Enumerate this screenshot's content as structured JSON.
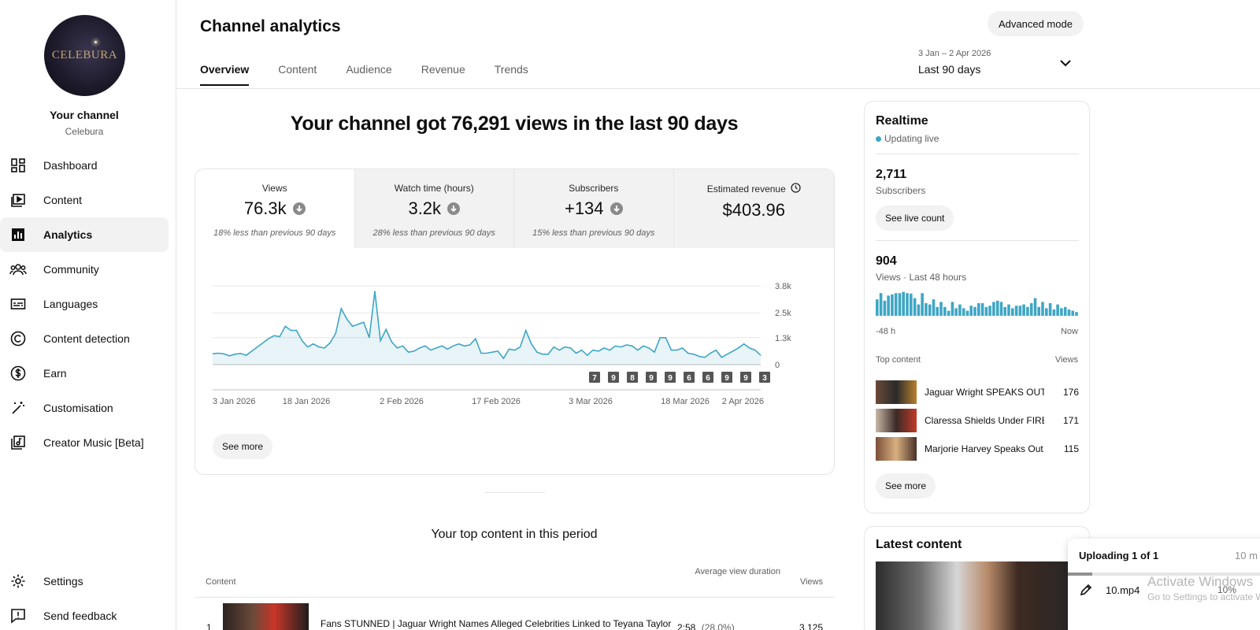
{
  "sidebar": {
    "avatar_text": "CELEBURA",
    "your_channel": "Your channel",
    "channel_name": "Celebura",
    "items": [
      {
        "label": "Dashboard",
        "icon": "dashboard-icon"
      },
      {
        "label": "Content",
        "icon": "content-icon"
      },
      {
        "label": "Analytics",
        "icon": "analytics-icon",
        "active": true
      },
      {
        "label": "Community",
        "icon": "community-icon"
      },
      {
        "label": "Languages",
        "icon": "subtitles-icon"
      },
      {
        "label": "Content detection",
        "icon": "copyright-icon"
      },
      {
        "label": "Earn",
        "icon": "dollar-icon"
      },
      {
        "label": "Customisation",
        "icon": "magic-wand-icon"
      },
      {
        "label": "Creator Music [Beta]",
        "icon": "music-icon"
      }
    ],
    "bottom": [
      {
        "label": "Settings",
        "icon": "gear-icon"
      },
      {
        "label": "Send feedback",
        "icon": "feedback-icon"
      }
    ]
  },
  "header": {
    "title": "Channel analytics",
    "advanced_mode": "Advanced mode",
    "tabs": [
      "Overview",
      "Content",
      "Audience",
      "Revenue",
      "Trends"
    ],
    "active_tab": "Overview",
    "date_range": {
      "sub": "3 Jan – 2 Apr 2026",
      "main": "Last 90 days"
    }
  },
  "overview": {
    "headline": "Your channel got 76,291 views in the last 90 days",
    "metrics": [
      {
        "label": "Views",
        "value": "76.3k",
        "note": "18% less than previous 90 days",
        "trend": "down"
      },
      {
        "label": "Watch time (hours)",
        "value": "3.2k",
        "note": "28% less than previous 90 days",
        "trend": "down"
      },
      {
        "label": "Subscribers",
        "value": "+134",
        "note": "15% less than previous 90 days",
        "trend": "down"
      },
      {
        "label": "Estimated revenue",
        "value": "$403.96",
        "note": "",
        "trend": "none"
      }
    ],
    "see_more": "See more"
  },
  "chart_data": {
    "type": "area",
    "title": "",
    "xlabel": "",
    "ylabel": "",
    "x_tick_labels": [
      "3 Jan 2026",
      "18 Jan 2026",
      "2 Feb 2026",
      "17 Feb 2026",
      "3 Mar 2026",
      "18 Mar 2026",
      "2 Apr 2026"
    ],
    "y_tick_labels": [
      "3.8k",
      "2.5k",
      "1.3k",
      "0"
    ],
    "y_ticks": [
      3800,
      2500,
      1300,
      0
    ],
    "ylim": [
      0,
      3800
    ],
    "grid": true,
    "series": [
      {
        "values": [
          520,
          550,
          520,
          420,
          500,
          540,
          450,
          650,
          850,
          1050,
          1250,
          1400,
          1350,
          1850,
          1650,
          1650,
          1150,
          850,
          1000,
          850,
          800,
          1050,
          1500,
          2700,
          2200,
          1850,
          1950,
          2050,
          1300,
          3550,
          1150,
          1700,
          1100,
          800,
          900,
          600,
          650,
          800,
          900,
          700,
          800,
          900,
          750,
          900,
          1000,
          900,
          950,
          1250,
          550,
          550,
          600,
          650,
          300,
          750,
          700,
          850,
          1650,
          1000,
          600,
          500,
          500,
          850,
          700,
          850,
          800,
          550,
          700,
          450,
          700,
          650,
          800,
          700,
          900,
          850,
          950,
          900,
          700,
          900,
          800,
          600,
          1300,
          1300,
          700,
          700,
          800,
          550,
          500,
          400,
          350,
          550,
          700,
          350,
          500,
          650,
          800,
          1000,
          800,
          700,
          450
        ]
      }
    ],
    "upload_markers": [
      "7",
      "9",
      "8",
      "9",
      "9",
      "6",
      "6",
      "9",
      "9",
      "3"
    ]
  },
  "top_content": {
    "title": "Your top content in this period",
    "col_content": "Content",
    "col_avg": "Average view duration",
    "col_views": "Views",
    "rows": [
      {
        "rank": "1",
        "title": "Fans STUNNED | Jaguar Wright Names Alleged Celebrities Linked to Teyana Taylor",
        "duration": "2:58",
        "duration_pct": "(28.0%)",
        "views": "3,125"
      }
    ]
  },
  "realtime": {
    "title": "Realtime",
    "live": "Updating live",
    "subscribers": "2,711",
    "subscribers_label": "Subscribers",
    "see_live_count": "See live count",
    "views": "904",
    "views_label": "Views · Last 48 hours",
    "axis_start": "-48 h",
    "axis_end": "Now",
    "bar_heights": [
      0.65,
      0.9,
      0.6,
      0.8,
      0.85,
      0.9,
      0.9,
      0.95,
      0.9,
      0.88,
      0.7,
      0.45,
      0.9,
      0.5,
      0.45,
      0.65,
      0.35,
      0.55,
      0.35,
      0.2,
      0.55,
      0.3,
      0.45,
      0.3,
      0.2,
      0.4,
      0.35,
      0.5,
      0.5,
      0.35,
      0.4,
      0.55,
      0.6,
      0.55,
      0.35,
      0.45,
      0.3,
      0.4,
      0.4,
      0.45,
      0.35,
      0.5,
      0.7,
      0.35,
      0.55,
      0.3,
      0.5,
      0.25,
      0.45,
      0.3,
      0.35,
      0.25,
      0.2,
      0.15
    ],
    "bar_color": "#3ea6c4",
    "top_content_label": "Top content",
    "top_views_label": "Views",
    "top": [
      {
        "title": "Jaguar Wright SPEAKS OUT...",
        "views": "176"
      },
      {
        "title": "Claressa Shields Under FIRE...",
        "views": "171"
      },
      {
        "title": "Marjorie Harvey Speaks Out...",
        "views": "115"
      }
    ],
    "see_more": "See more"
  },
  "latest": {
    "title": "Latest content"
  },
  "upload": {
    "title": "Uploading 1 of 1",
    "time_left": "10 m",
    "file": "10.mp4",
    "progress_pct": "10%",
    "progress": 0.12
  },
  "watermark": {
    "line1": "Activate Windows",
    "line2": "Go to Settings to activate Windows."
  }
}
